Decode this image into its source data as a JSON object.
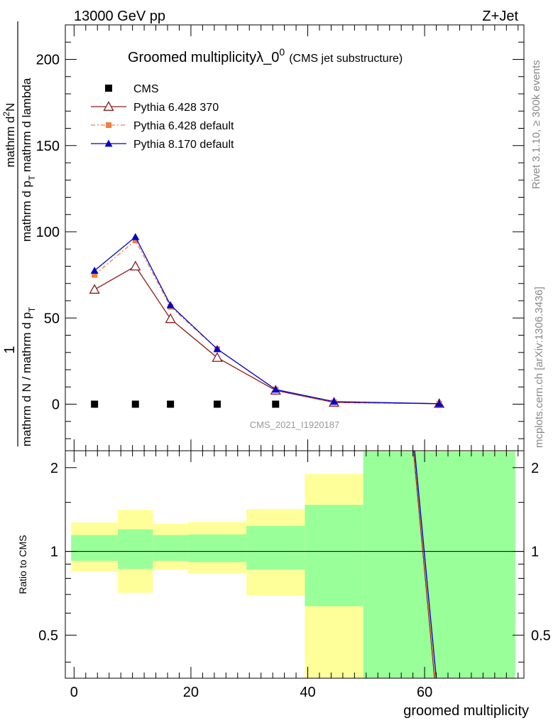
{
  "header": {
    "left": "13000 GeV pp",
    "right": "Z+Jet"
  },
  "side_labels": {
    "rivet": "Rivet 3.1.10, ≥ 300k events",
    "mcplots": "mcplots.cern.ch [arXiv:1306.3436]"
  },
  "chart_data": [
    {
      "type": "line",
      "title_main": "Groomed multiplicityλ_0",
      "title_sup": "0",
      "title_sub": "(CMS jet substructure)",
      "watermark": "CMS_2021_I1920187",
      "ylabel_num": "mathrm d²N",
      "ylabel_num_pre": "mathrm d",
      "ylabel_num_sup": "2",
      "ylabel_num_post": "N",
      "ylabel_den": "mathrm d p",
      "ylabel_den_sub": "T",
      "ylabel_den_post": " mathrm d lambda",
      "ylabel_prefix_num": "1",
      "ylabel_prefix_den": "mathrm d N / mathrm d p",
      "ylabel_prefix_den_sub": "T",
      "xlim": [
        -1.5,
        77
      ],
      "ylim": [
        -27,
        220
      ],
      "yticks": [
        0,
        50,
        100,
        150,
        200
      ],
      "ytick_labels": [
        "0",
        "50",
        "100",
        "150",
        "200"
      ],
      "legend_position": "top-left",
      "series": [
        {
          "name": "CMS",
          "color": "#000000",
          "marker": "square",
          "x": [
            3.5,
            10.5,
            16.5,
            24.5,
            34.5
          ],
          "y": [
            0,
            0,
            0,
            0,
            0
          ]
        },
        {
          "name": "Pythia 6.428 370",
          "color": "#8b1a1a",
          "marker": "open-triangle",
          "x": [
            3.5,
            10.5,
            16.5,
            24.5,
            34.5,
            44.5,
            62.5
          ],
          "y": [
            66.5,
            80,
            49.5,
            27,
            8,
            1,
            0.3
          ]
        },
        {
          "name": "Pythia 6.428 default",
          "color": "#f08040",
          "marker": "filled-square",
          "x": [
            3.5,
            10.5,
            16.5,
            24.5,
            34.5,
            44.5,
            62.5
          ],
          "y": [
            75,
            95,
            56.5,
            32,
            8.5,
            1.2,
            0.3
          ]
        },
        {
          "name": "Pythia 8.170 default",
          "color": "#0000cc",
          "marker": "filled-triangle",
          "x": [
            3.5,
            10.5,
            16.5,
            24.5,
            34.5,
            44.5,
            62.5
          ],
          "y": [
            77.5,
            97,
            57.5,
            32,
            8.5,
            1.5,
            0.3
          ]
        }
      ]
    },
    {
      "type": "area",
      "ylabel": "Ratio to CMS",
      "xlabel": "groomed multiplicity",
      "xlim": [
        -1.5,
        77
      ],
      "ylim": [
        0.35,
        2.3
      ],
      "xticks": [
        0,
        20,
        40,
        60
      ],
      "xtick_labels": [
        "0",
        "20",
        "40",
        "60"
      ],
      "yticks": [
        0.5,
        1,
        2
      ],
      "ytick_labels": [
        "0.5",
        "1",
        "2"
      ],
      "reference_line": 1,
      "bands": [
        {
          "x0": -0.5,
          "x1": 7.5,
          "yellow": [
            0.845,
            1.27
          ],
          "green": [
            0.925,
            1.145
          ]
        },
        {
          "x0": 7.5,
          "x1": 13.5,
          "yellow": [
            0.71,
            1.41
          ],
          "green": [
            0.865,
            1.2
          ]
        },
        {
          "x0": 13.5,
          "x1": 19.5,
          "yellow": [
            0.86,
            1.255
          ],
          "green": [
            0.925,
            1.145
          ]
        },
        {
          "x0": 19.5,
          "x1": 29.5,
          "yellow": [
            0.835,
            1.275
          ],
          "green": [
            0.915,
            1.15
          ]
        },
        {
          "x0": 29.5,
          "x1": 39.5,
          "yellow": [
            0.695,
            1.42
          ],
          "green": [
            0.86,
            1.235
          ]
        },
        {
          "x0": 39.5,
          "x1": 49.5,
          "yellow": [
            0.35,
            1.9
          ],
          "green": [
            0.635,
            1.47
          ]
        },
        {
          "x0": 49.5,
          "x1": 75.5,
          "yellow": [
            0.35,
            2.3
          ],
          "green": [
            0.35,
            2.28
          ]
        }
      ],
      "series": [
        {
          "name": "Pythia 6.428 370",
          "color": "#8b1a1a",
          "x": [
            58.1,
            61.7
          ],
          "y": [
            2.3,
            0.35
          ]
        },
        {
          "name": "Pythia 6.428 default",
          "color": "#f08040",
          "x": [
            58.2,
            61.8
          ],
          "y": [
            2.3,
            0.35
          ]
        },
        {
          "name": "Pythia 8.170 default",
          "color": "#0000cc",
          "x": [
            58.3,
            62.0
          ],
          "y": [
            2.3,
            0.35
          ]
        }
      ]
    }
  ]
}
